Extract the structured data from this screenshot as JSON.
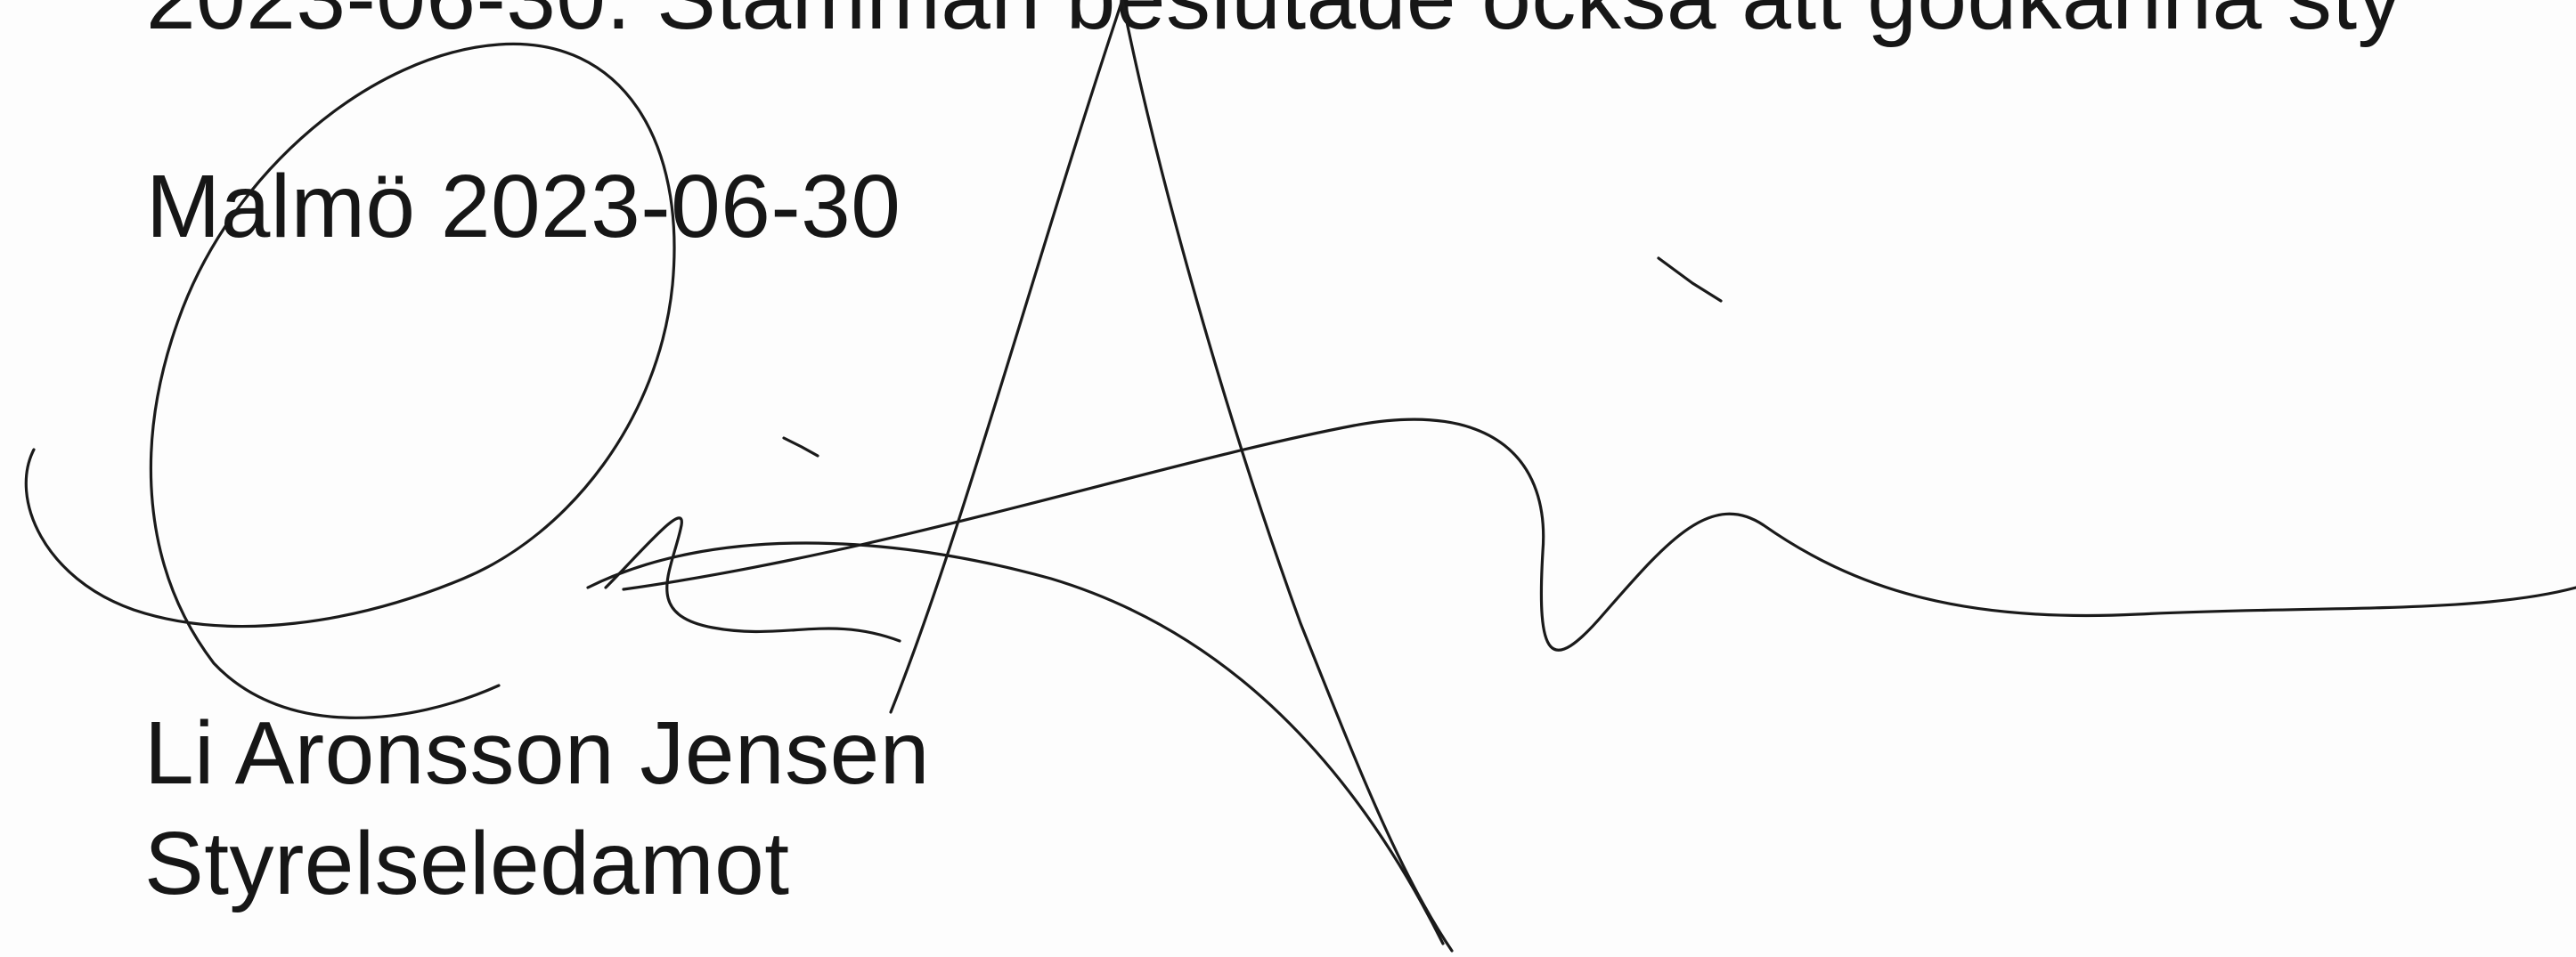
{
  "document": {
    "cut_line": "2023-06-30. Stämman beslutade också att godkänna sty",
    "place_date": "Malmö 2023-06-30",
    "signer_name": "Li Aronsson Jensen",
    "signer_role": "Styrelseledamot"
  },
  "signature": {
    "ink_color": "#1a1a1a"
  }
}
